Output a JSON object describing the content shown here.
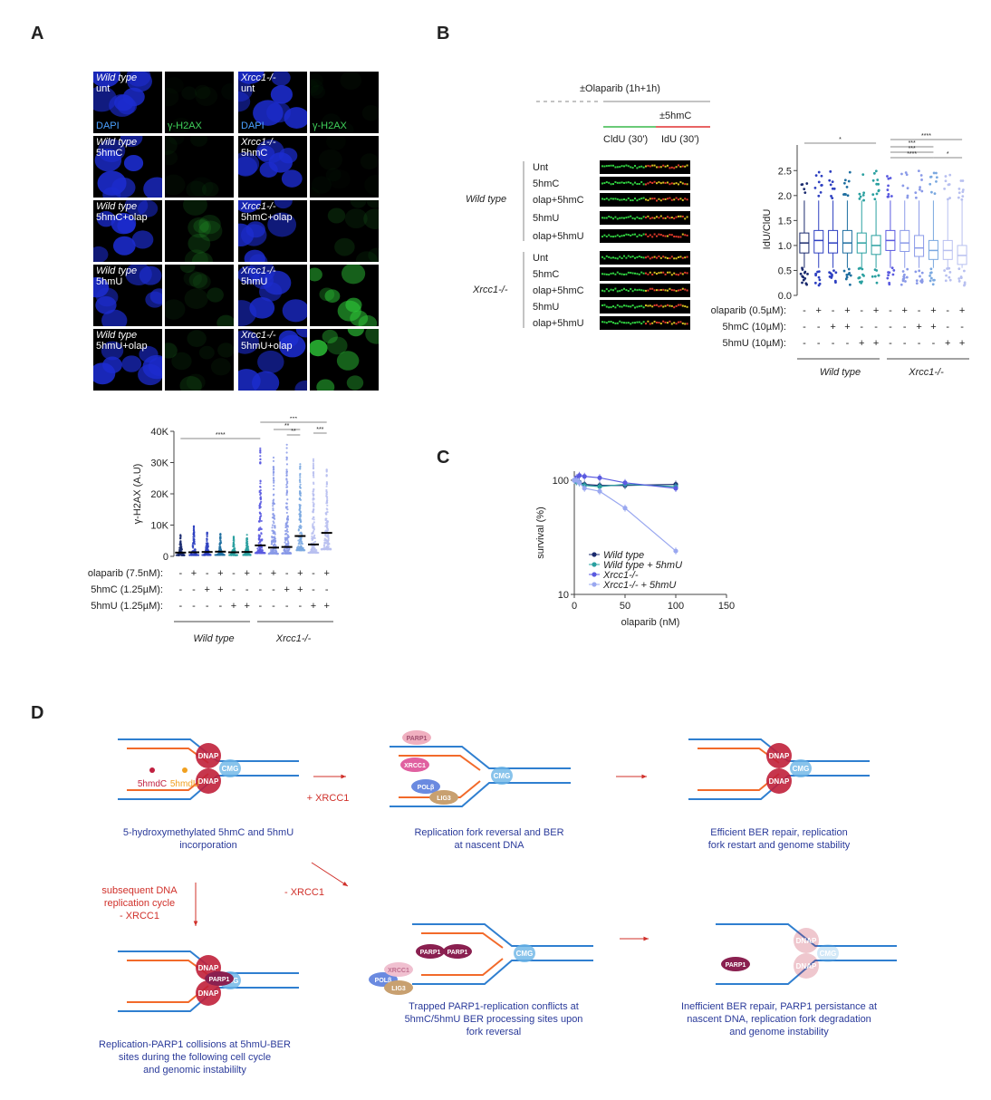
{
  "panel_labels": {
    "a": "A",
    "b": "B",
    "c": "C",
    "d": "D"
  },
  "panelA": {
    "micrographs": [
      {
        "row": 0,
        "group": "Wild type",
        "treatment": "unt"
      },
      {
        "row": 1,
        "group": "Wild type",
        "treatment": "5hmC"
      },
      {
        "row": 2,
        "group": "Wild type",
        "treatment": "5hmC+olap"
      },
      {
        "row": 3,
        "group": "Wild type",
        "treatment": "5hmU"
      },
      {
        "row": 4,
        "group": "Wild type",
        "treatment": "5hmU+olap"
      }
    ],
    "micrographs_ko": [
      {
        "row": 0,
        "group": "Xrcc1-/-",
        "treatment": "unt"
      },
      {
        "row": 1,
        "group": "Xrcc1-/-",
        "treatment": "5hmC"
      },
      {
        "row": 2,
        "group": "Xrcc1-/-",
        "treatment": "5hmC+olap"
      },
      {
        "row": 3,
        "group": "Xrcc1-/-",
        "treatment": "5hmU"
      },
      {
        "row": 4,
        "group": "Xrcc1-/-",
        "treatment": "5hmU+olap"
      }
    ],
    "channel_dapi": "DAPI",
    "channel_h2ax": "γ-H2AX",
    "green_intensity": [
      0.03,
      0.03,
      0.05,
      0.03,
      0.12,
      0.1,
      0.12,
      0.45,
      0.1,
      0.55
    ]
  },
  "colors": {
    "wt1": "#1a2a6e",
    "wt2": "#2d3fc0",
    "wt3": "#1e6ea0",
    "wt4": "#2aa0a0",
    "ko1": "#5a5ae0",
    "ko2": "#8a9ae8",
    "ko3": "#7aa8e0",
    "ko4": "#b8c0f0",
    "blue_strand": "#2f7fd0",
    "orange_strand": "#f26a2a",
    "dnap": "#c0203a",
    "cmg": "#6ab4e6",
    "parp": "#8a2050",
    "caption": "#2a3a9a",
    "red_text": "#d0302a"
  },
  "chart_data": [
    {
      "id": "A-scatter",
      "type": "scatter",
      "ylabel": "γ-H2AX (A.U)",
      "ylim": [
        0,
        40000
      ],
      "yticks": [
        "0",
        "10K",
        "20K",
        "30K",
        "40K"
      ],
      "ytick_values": [
        0,
        10000,
        20000,
        30000,
        40000
      ],
      "n_groups": 12,
      "medians": [
        1200,
        1300,
        1400,
        1500,
        1300,
        1400,
        3500,
        2800,
        3000,
        6500,
        3800,
        7500
      ],
      "spread_max": [
        7000,
        9500,
        7500,
        7000,
        6000,
        6500,
        34000,
        31000,
        36000,
        29000,
        30000,
        26000
      ],
      "cond_rows": [
        {
          "label": "olaparib (7.5nM):",
          "values": [
            "-",
            "+",
            "-",
            "+",
            "-",
            "+",
            "-",
            "+",
            "-",
            "+",
            "-",
            "+"
          ]
        },
        {
          "label": "5hmC (1.25µM):",
          "values": [
            "-",
            "-",
            "+",
            "+",
            "-",
            "-",
            "-",
            "-",
            "+",
            "+",
            "-",
            "-"
          ]
        },
        {
          "label": "5hmU (1.25µM):",
          "values": [
            "-",
            "-",
            "-",
            "-",
            "+",
            "+",
            "-",
            "-",
            "-",
            "-",
            "+",
            "+"
          ]
        }
      ],
      "groups": [
        "Wild type",
        "Xrcc1-/-"
      ],
      "significance": [
        {
          "from": 0,
          "to": 6,
          "label": "****"
        },
        {
          "from": 6,
          "to": 11,
          "label": "***"
        },
        {
          "from": 7,
          "to": 9,
          "label": "**"
        },
        {
          "from": 8,
          "to": 9,
          "label": "**"
        },
        {
          "from": 10,
          "to": 11,
          "label": "***"
        }
      ]
    },
    {
      "id": "B-box",
      "type": "box",
      "ylabel": "IdU/CldU",
      "ylim": [
        0,
        2.5
      ],
      "yticks": [
        "0.0",
        "0.5",
        "1.0",
        "1.5",
        "2.0",
        "2.5"
      ],
      "ytick_values": [
        0,
        0.5,
        1.0,
        1.5,
        2.0,
        2.5
      ],
      "medians": [
        1.05,
        1.1,
        1.05,
        1.05,
        1.05,
        1.0,
        1.1,
        1.05,
        0.95,
        0.9,
        0.9,
        0.8
      ],
      "q1": [
        0.85,
        0.85,
        0.85,
        0.85,
        0.85,
        0.82,
        0.9,
        0.88,
        0.78,
        0.72,
        0.72,
        0.62
      ],
      "q3": [
        1.25,
        1.3,
        1.3,
        1.3,
        1.25,
        1.2,
        1.3,
        1.3,
        1.2,
        1.1,
        1.1,
        1.0
      ],
      "cond_rows": [
        {
          "label": "olaparib (0.5µM):",
          "values": [
            "-",
            "+",
            "-",
            "+",
            "-",
            "+",
            "-",
            "+",
            "-",
            "+",
            "-",
            "+"
          ]
        },
        {
          "label": "5hmC (10µM):",
          "values": [
            "-",
            "-",
            "+",
            "+",
            "-",
            "-",
            "-",
            "-",
            "+",
            "+",
            "-",
            "-"
          ]
        },
        {
          "label": "5hmU (10µM):",
          "values": [
            "-",
            "-",
            "-",
            "-",
            "+",
            "+",
            "-",
            "-",
            "-",
            "-",
            "+",
            "+"
          ]
        }
      ],
      "groups": [
        "Wild type",
        "Xrcc1-/-"
      ],
      "significance": [
        {
          "from": 0,
          "to": 5,
          "label": "*"
        },
        {
          "from": 6,
          "to": 11,
          "label": "****"
        },
        {
          "from": 6,
          "to": 9,
          "label": "***"
        },
        {
          "from": 6,
          "to": 9,
          "label": "***"
        },
        {
          "from": 6,
          "to": 9,
          "label": "****"
        },
        {
          "from": 10,
          "to": 11,
          "label": "*"
        }
      ]
    },
    {
      "id": "C-survival",
      "type": "line",
      "xlabel": "olaparib (nM)",
      "ylabel": "survival (%)",
      "xlim": [
        0,
        150
      ],
      "xticks": [
        "0",
        "50",
        "100",
        "150"
      ],
      "xtick_values": [
        0,
        50,
        100,
        150
      ],
      "yscale": "log",
      "ylim": [
        10,
        120
      ],
      "yticks": [
        "10",
        "100"
      ],
      "ytick_values": [
        10,
        100
      ],
      "x": [
        0,
        2,
        5,
        10,
        25,
        50,
        100
      ],
      "series": [
        {
          "name": "Wild type",
          "values": [
            100,
            98,
            96,
            92,
            90,
            90,
            92
          ],
          "color": "#1a2a6e"
        },
        {
          "name": "Wild type + 5hmU",
          "values": [
            100,
            97,
            95,
            90,
            88,
            92,
            88
          ],
          "color": "#2aa0a0"
        },
        {
          "name": "Xrcc1-/-",
          "values": [
            100,
            105,
            110,
            108,
            105,
            95,
            85
          ],
          "color": "#5a5ae0"
        },
        {
          "name": "Xrcc1-/- + 5hmU",
          "values": [
            100,
            100,
            95,
            85,
            80,
            57,
            24
          ],
          "color": "#9aa8f0"
        }
      ]
    }
  ],
  "panelB": {
    "olaparib_label": "±Olaparib (1h+1h)",
    "hmc_label": "±5hmC",
    "cldu_label": "CldU (30')",
    "idu_label": "IdU (30')",
    "wt_label": "Wild type",
    "ko_label": "Xrcc1-/-",
    "fiber_rows": [
      "Unt",
      "5hmC",
      "olap+5hmC",
      "5hmU",
      "olap+5hmU"
    ]
  },
  "panelD": {
    "s1": {
      "caption": "5-hydroxymethylated 5hmC and 5hmU incorporation",
      "lbl1": "5hmdC",
      "lbl2": "5hmdU"
    },
    "s2": {
      "caption": "Replication fork reversal and BER at nascent DNA"
    },
    "s3": {
      "caption": "Efficient BER repair, replication fork restart and genome stability"
    },
    "s4": {
      "caption": "Replication-PARP1 collisions at 5hmU-BER sites during the following cell cycle and genomic instabililty"
    },
    "s5": {
      "caption": "Trapped PARP1-replication conflicts at 5hmC/5hmU BER processing sites upon fork reversal"
    },
    "s6": {
      "caption": "Inefficient BER repair, PARP1 persistance at nascent DNA, replication fork degradation and genome instability"
    },
    "arrow_plus": "+ XRCC1",
    "arrow_minus": "- XRCC1",
    "arrow_down": "subsequent DNA replication cycle - XRCC1",
    "dnap": "DNAP",
    "cmg": "CMG",
    "parp": "PARP1",
    "xrcc": "XRCC1",
    "pol": "POLβ",
    "lig": "LIG3"
  }
}
